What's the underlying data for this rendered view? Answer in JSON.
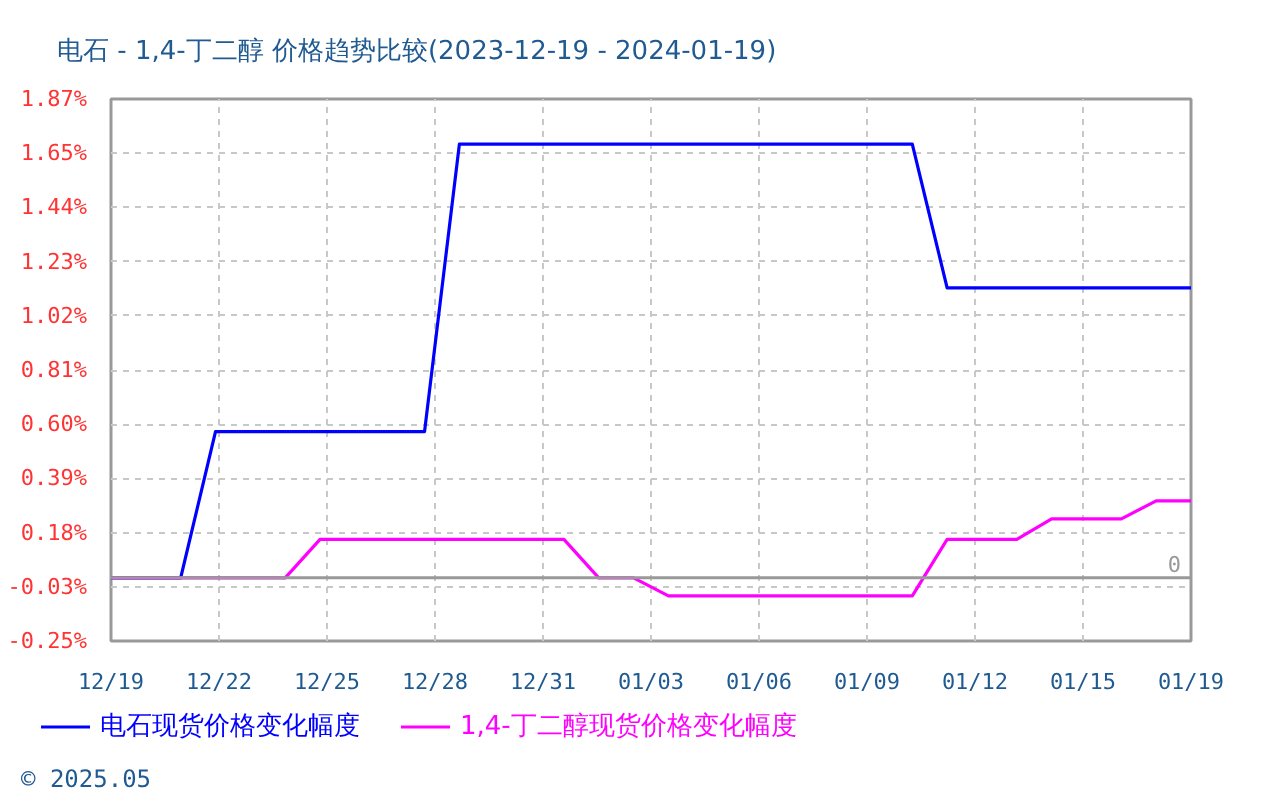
{
  "chart_data": {
    "type": "line",
    "title": "电石 - 1,4-丁二醇 价格趋势比较(2023-12-19 - 2024-01-19)",
    "xlim": [
      "2023-12-19",
      "2024-01-19"
    ],
    "xticks": [
      {
        "value": "2023-12-19",
        "label": "12/19"
      },
      {
        "value": "2023-12-22T02:24",
        "label": "12/22"
      },
      {
        "value": "2023-12-25T04:48",
        "label": "12/25"
      },
      {
        "value": "2023-12-28T07:12",
        "label": "12/28"
      },
      {
        "value": "2023-12-31T09:36",
        "label": "12/31"
      },
      {
        "value": "2024-01-03T12:00",
        "label": "01/03"
      },
      {
        "value": "2024-01-06T14:24",
        "label": "01/06"
      },
      {
        "value": "2024-01-09T16:48",
        "label": "01/09"
      },
      {
        "value": "2024-01-12T19:12",
        "label": "01/12"
      },
      {
        "value": "2024-01-15T21:36",
        "label": "01/15"
      },
      {
        "value": "2024-01-19",
        "label": "01/19"
      }
    ],
    "ylim": [
      -0.246,
      1.866
    ],
    "yticks": [
      {
        "value": -0.246,
        "label": "-0.25%"
      },
      {
        "value": -0.035,
        "label": "-0.03%"
      },
      {
        "value": 0.176,
        "label": "0.18%"
      },
      {
        "value": 0.388,
        "label": "0.39%"
      },
      {
        "value": 0.599,
        "label": "0.60%"
      },
      {
        "value": 0.81,
        "label": "0.81%"
      },
      {
        "value": 1.021,
        "label": "1.02%"
      },
      {
        "value": 1.232,
        "label": "1.23%"
      },
      {
        "value": 1.444,
        "label": "1.44%"
      },
      {
        "value": 1.655,
        "label": "1.65%"
      },
      {
        "value": 1.866,
        "label": "1.87%"
      }
    ],
    "series": [
      {
        "name": "电石现货价格变化幅度",
        "color": "#0000ff",
        "x": [
          "2023-12-19",
          "2023-12-21",
          "2023-12-22",
          "2023-12-28",
          "2023-12-29",
          "2024-01-11",
          "2024-01-12",
          "2024-01-19"
        ],
        "values": [
          0,
          0,
          0.57,
          0.57,
          1.69,
          1.69,
          1.13,
          1.13
        ]
      },
      {
        "name": "1,4-丁二醇现货价格变化幅度",
        "color": "#ff00ff",
        "x": [
          "2023-12-19",
          "2023-12-24",
          "2023-12-25",
          "2024-01-01",
          "2024-01-02",
          "2024-01-03",
          "2024-01-04",
          "2024-01-11",
          "2024-01-12",
          "2024-01-14",
          "2024-01-15",
          "2024-01-17",
          "2024-01-18",
          "2024-01-19"
        ],
        "values": [
          0,
          0,
          0.15,
          0.15,
          0,
          0,
          -0.07,
          -0.07,
          0.15,
          0.15,
          0.23,
          0.23,
          0.3,
          0.3
        ]
      }
    ],
    "ref_lines": [
      {
        "axis": "y",
        "value": 0,
        "label": "0",
        "color": "#999999"
      }
    ],
    "grid": true,
    "legend": "bottom",
    "annotations": [
      "© 2025.05"
    ]
  }
}
